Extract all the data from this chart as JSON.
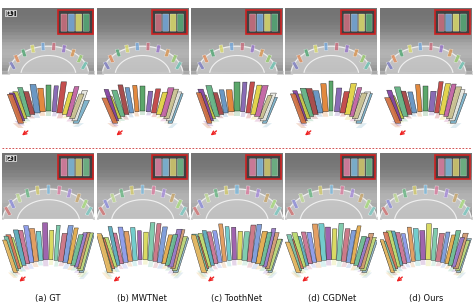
{
  "captions": [
    "(a) GT",
    "(b) MWTNet",
    "(c) ToothNet",
    "(d) CGDNet",
    "(d) Ours"
  ],
  "row_labels": [
    "[1]",
    "[2]"
  ],
  "n_cols": 5,
  "figsize": [
    4.74,
    3.08
  ],
  "dpi": 100,
  "bg_color": "#ffffff",
  "ct_bg": "#808080",
  "ct_arch_color": "#d8d8d8",
  "ct_inner_color": "#606060",
  "panel_3d_bg": "#0d0d0d",
  "inset_border": "#cc2222",
  "dotted_color": "#cc3333",
  "label_box_color": "#000000",
  "caption_fontsize": 6.0,
  "teeth_colors_row1_3d": [
    "#7ab0c8",
    "#e8e8e0",
    "#c8c090",
    "#c060a0",
    "#e0d040",
    "#c04040",
    "#8060b0",
    "#50a060",
    "#e08030",
    "#6090c0",
    "#a04040",
    "#60b080",
    "#c0c040",
    "#8040a0",
    "#d07040"
  ],
  "teeth_colors_row2_3d": [
    "#90b8c8",
    "#c0d878",
    "#d09870",
    "#9878c8",
    "#68b890",
    "#e0a848",
    "#7898d8",
    "#c87080",
    "#78c8a8",
    "#d8d858",
    "#9858a8",
    "#68c8c8",
    "#e09858",
    "#8898e8",
    "#c87090",
    "#58a8b8",
    "#b8d868",
    "#d87858",
    "#78c0a8",
    "#e8b860"
  ],
  "ct_teeth_colors": [
    "#70c0b0",
    "#98c870",
    "#d89858",
    "#9878c8",
    "#c87080",
    "#78a8d8",
    "#d8d870",
    "#58a878",
    "#e09060",
    "#8080c0"
  ],
  "ct_teeth_colors2": [
    "#80c8c0",
    "#a8d880",
    "#c8a870",
    "#a890d8",
    "#d880a0",
    "#80b8d8",
    "#d0c870",
    "#70b888",
    "#c0d898",
    "#9090d8",
    "#d07878"
  ]
}
